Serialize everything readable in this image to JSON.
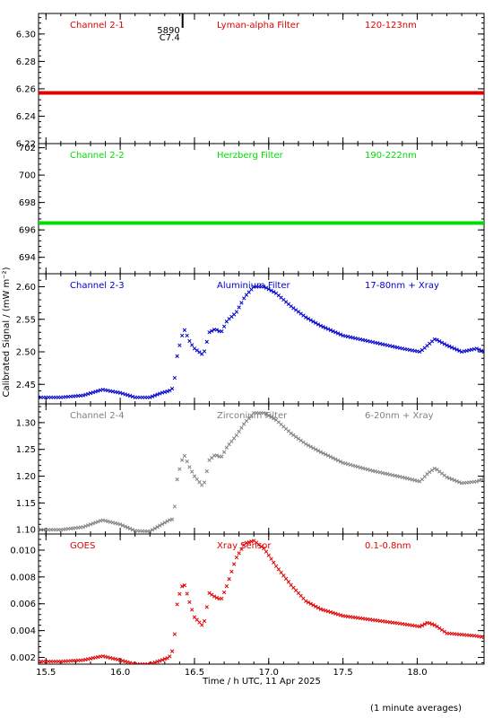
{
  "ylabel": "Calibrated Signal / (mW m⁻²)",
  "xlabel": "Time / h UTC, 11 Apr 2025",
  "footnote": "(1 minute averages)",
  "event": {
    "time": 16.42,
    "label_top": "5890",
    "label_bottom": "C7.4"
  },
  "chart_data": [
    {
      "type": "scatter",
      "channel": "Channel 2-1",
      "filter": "Lyman-alpha Filter",
      "band": "120-123nm",
      "color": "#e00000",
      "ylim": [
        6.22,
        6.315
      ],
      "yticks": [
        6.22,
        6.24,
        6.26,
        6.28,
        6.3
      ],
      "ytick_labels": [
        "6.22",
        "6.24",
        "6.26",
        "6.28",
        "6.30"
      ],
      "x": [
        15.45,
        18.45
      ],
      "y": [
        6.257,
        6.257
      ]
    },
    {
      "type": "scatter",
      "channel": "Channel 2-2",
      "filter": "Herzberg Filter",
      "band": "190-222nm",
      "color": "#00dd00",
      "ylim": [
        692.8,
        702.3
      ],
      "yticks": [
        694,
        696,
        698,
        700,
        702
      ],
      "ytick_labels": [
        "694",
        "696",
        "698",
        "700",
        "702"
      ],
      "x": [
        15.45,
        18.45
      ],
      "y": [
        696.5,
        696.5
      ]
    },
    {
      "type": "scatter",
      "channel": "Channel 2-3",
      "filter": "Aluminium Filter",
      "band": "17-80nm + Xray",
      "color": "#0000cc",
      "ylim": [
        2.42,
        2.62
      ],
      "yticks": [
        2.45,
        2.5,
        2.55,
        2.6
      ],
      "ytick_labels": [
        "2.45",
        "2.50",
        "2.55",
        "2.60"
      ],
      "x": [
        15.45,
        15.6,
        15.75,
        15.88,
        16.0,
        16.1,
        16.2,
        16.28,
        16.33,
        16.36,
        16.38,
        16.41,
        16.43,
        16.47,
        16.5,
        16.56,
        16.6,
        16.64,
        16.68,
        16.72,
        16.78,
        16.84,
        16.9,
        16.97,
        17.05,
        17.15,
        17.25,
        17.35,
        17.5,
        17.7,
        17.9,
        18.02,
        18.07,
        18.12,
        18.2,
        18.3,
        18.4,
        18.45
      ],
      "y": [
        2.43,
        2.43,
        2.433,
        2.442,
        2.437,
        2.43,
        2.43,
        2.437,
        2.44,
        2.445,
        2.49,
        2.52,
        2.535,
        2.515,
        2.505,
        2.495,
        2.53,
        2.535,
        2.53,
        2.548,
        2.56,
        2.585,
        2.6,
        2.6,
        2.59,
        2.57,
        2.553,
        2.54,
        2.525,
        2.515,
        2.505,
        2.5,
        2.51,
        2.52,
        2.51,
        2.5,
        2.505,
        2.5
      ]
    },
    {
      "type": "scatter",
      "channel": "Channel 2-4",
      "filter": "Zirconium Filter",
      "band": "6-20nm + Xray",
      "color": "#808080",
      "ylim": [
        1.092,
        1.335
      ],
      "yticks": [
        1.1,
        1.15,
        1.2,
        1.25,
        1.3
      ],
      "ytick_labels": [
        "1.10",
        "1.15",
        "1.20",
        "1.25",
        "1.30"
      ],
      "x": [
        15.45,
        15.6,
        15.75,
        15.88,
        16.0,
        16.1,
        16.2,
        16.28,
        16.33,
        16.36,
        16.38,
        16.41,
        16.43,
        16.47,
        16.5,
        16.56,
        16.6,
        16.64,
        16.68,
        16.72,
        16.78,
        16.84,
        16.9,
        16.97,
        17.05,
        17.15,
        17.25,
        17.35,
        17.5,
        17.7,
        17.9,
        18.02,
        18.07,
        18.12,
        18.2,
        18.3,
        18.4,
        18.45
      ],
      "y": [
        1.1,
        1.1,
        1.105,
        1.118,
        1.11,
        1.098,
        1.097,
        1.11,
        1.118,
        1.12,
        1.19,
        1.225,
        1.24,
        1.215,
        1.2,
        1.18,
        1.23,
        1.24,
        1.235,
        1.255,
        1.275,
        1.3,
        1.318,
        1.318,
        1.305,
        1.28,
        1.26,
        1.245,
        1.225,
        1.21,
        1.198,
        1.19,
        1.205,
        1.215,
        1.198,
        1.187,
        1.19,
        1.195
      ]
    },
    {
      "type": "scatter",
      "channel": "GOES",
      "filter": "Xray Sensor",
      "band": "0.1-0.8nm",
      "color": "#e00000",
      "ylim": [
        0.0015,
        0.0112
      ],
      "yticks": [
        0.002,
        0.004,
        0.006,
        0.008,
        0.01
      ],
      "ytick_labels": [
        "0.002",
        "0.004",
        "0.006",
        "0.008",
        "0.010"
      ],
      "x": [
        15.45,
        15.6,
        15.75,
        15.88,
        16.0,
        16.1,
        16.2,
        16.28,
        16.33,
        16.36,
        16.38,
        16.41,
        16.43,
        16.47,
        16.5,
        16.56,
        16.6,
        16.64,
        16.68,
        16.72,
        16.78,
        16.84,
        16.9,
        16.97,
        17.05,
        17.15,
        17.25,
        17.35,
        17.5,
        17.7,
        17.9,
        18.02,
        18.07,
        18.12,
        18.2,
        18.3,
        18.4,
        18.45
      ],
      "y": [
        0.0017,
        0.0017,
        0.0018,
        0.0021,
        0.0018,
        0.0015,
        0.0015,
        0.0018,
        0.002,
        0.0027,
        0.0058,
        0.0072,
        0.0075,
        0.006,
        0.005,
        0.0043,
        0.0068,
        0.0065,
        0.0063,
        0.0074,
        0.0094,
        0.0105,
        0.0107,
        0.0101,
        0.0088,
        0.0074,
        0.0062,
        0.0056,
        0.0051,
        0.0048,
        0.0045,
        0.0043,
        0.0046,
        0.0044,
        0.0038,
        0.0037,
        0.0036,
        0.0035
      ]
    }
  ],
  "x_axis": {
    "xlim": [
      15.45,
      18.45
    ],
    "ticks": [
      15.5,
      16.0,
      16.5,
      17.0,
      17.5,
      18.0
    ],
    "tick_labels": [
      "15.5",
      "16.0",
      "16.5",
      "17.0",
      "17.5",
      "18.0"
    ]
  }
}
